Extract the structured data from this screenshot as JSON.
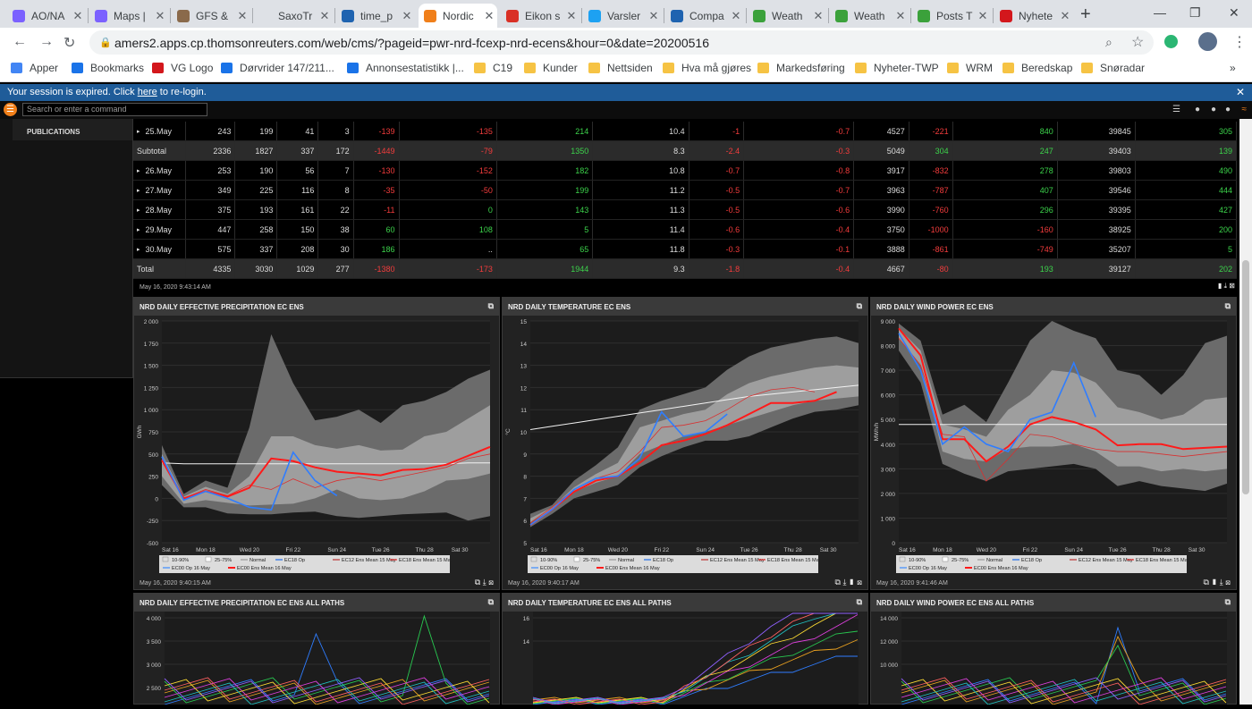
{
  "tabs": [
    {
      "label": "AO/NA",
      "color": "#7b61ff",
      "active": false
    },
    {
      "label": "Maps |",
      "color": "#7b61ff",
      "active": false
    },
    {
      "label": "GFS &",
      "color": "#8a6a4b",
      "active": false
    },
    {
      "label": "SaxoTr",
      "color": "#dee1e6",
      "active": false
    },
    {
      "label": "time_p",
      "color": "#1f63b0",
      "active": false
    },
    {
      "label": "Nordic",
      "color": "#f07f1a",
      "active": true
    },
    {
      "label": "Eikon s",
      "color": "#d93025",
      "active": false
    },
    {
      "label": "Varsler",
      "color": "#1da1f2",
      "active": false
    },
    {
      "label": "Compa",
      "color": "#1f63b0",
      "active": false
    },
    {
      "label": "Weath",
      "color": "#3ba13b",
      "active": false
    },
    {
      "label": "Weath",
      "color": "#3ba13b",
      "active": false
    },
    {
      "label": "Posts T",
      "color": "#3ba13b",
      "active": false
    },
    {
      "label": "Nyhete",
      "color": "#d3171c",
      "active": false
    }
  ],
  "address": {
    "url": "amers2.apps.cp.thomsonreuters.com/web/cms/?pageid=pwr-nrd-fcexp-nrd-ecens&hour=0&date=20200516"
  },
  "bookmarks": [
    {
      "label": "Apper",
      "color": "#4285f4"
    },
    {
      "label": "Bookmarks",
      "color": "#1a73e8"
    },
    {
      "label": "VG Logo",
      "color": "#d3171c"
    },
    {
      "label": "Dørvrider 147/211...",
      "color": "#1a73e8"
    },
    {
      "label": "Annonsestatistikk |...",
      "color": "#1a73e8"
    },
    {
      "label": "C19",
      "color": "#f6c344"
    },
    {
      "label": "Kunder",
      "color": "#f6c344"
    },
    {
      "label": "Nettsiden",
      "color": "#f6c344"
    },
    {
      "label": "Hva må gjøres",
      "color": "#f6c344"
    },
    {
      "label": "Markedsføring",
      "color": "#f6c344"
    },
    {
      "label": "Nyheter-TWP",
      "color": "#f6c344"
    },
    {
      "label": "WRM",
      "color": "#f6c344"
    },
    {
      "label": "Beredskap",
      "color": "#f6c344"
    },
    {
      "label": "Snøradar",
      "color": "#f6c344"
    }
  ],
  "session": {
    "before": "Your session is expired. Click ",
    "link": "here",
    "after": " to re-login."
  },
  "command": {
    "placeholder": "Search or enter a command"
  },
  "sidebar": {
    "publications": "PUBLICATIONS"
  },
  "table": {
    "rows": [
      {
        "label": "25.May",
        "exp": true,
        "cells": [
          "243",
          "199",
          "41",
          "3",
          "-139",
          "-135",
          "214",
          "10.4",
          "-1",
          "-0.7",
          "4527",
          "-221",
          "840",
          "39845",
          "305"
        ]
      },
      {
        "label": "Subtotal",
        "exp": false,
        "sub": true,
        "cells": [
          "2336",
          "1827",
          "337",
          "172",
          "-1449",
          "-79",
          "1350",
          "8.3",
          "-2.4",
          "-0.3",
          "5049",
          "304",
          "247",
          "39403",
          "139"
        ]
      },
      {
        "label": "26.May",
        "exp": true,
        "cells": [
          "253",
          "190",
          "56",
          "7",
          "-130",
          "-152",
          "182",
          "10.8",
          "-0.7",
          "-0.8",
          "3917",
          "-832",
          "278",
          "39803",
          "490"
        ]
      },
      {
        "label": "27.May",
        "exp": true,
        "cells": [
          "349",
          "225",
          "116",
          "8",
          "-35",
          "-50",
          "199",
          "11.2",
          "-0.5",
          "-0.7",
          "3963",
          "-787",
          "407",
          "39546",
          "444"
        ]
      },
      {
        "label": "28.May",
        "exp": true,
        "cells": [
          "375",
          "193",
          "161",
          "22",
          "-11",
          "0",
          "143",
          "11.3",
          "-0.5",
          "-0.6",
          "3990",
          "-760",
          "296",
          "39395",
          "427"
        ]
      },
      {
        "label": "29.May",
        "exp": true,
        "cells": [
          "447",
          "258",
          "150",
          "38",
          "60",
          "108",
          "5",
          "11.4",
          "-0.6",
          "-0.4",
          "3750",
          "-1000",
          "-160",
          "38925",
          "200"
        ]
      },
      {
        "label": "30.May",
        "exp": true,
        "cells": [
          "575",
          "337",
          "208",
          "30",
          "186",
          "..",
          "65",
          "11.8",
          "-0.3",
          "-0.1",
          "3888",
          "-861",
          "-749",
          "35207",
          "5"
        ]
      },
      {
        "label": "Total",
        "exp": false,
        "sub": true,
        "cells": [
          "4335",
          "3030",
          "1029",
          "277",
          "-1380",
          "-173",
          "1944",
          "9.3",
          "-1.8",
          "-0.4",
          "4667",
          "-80",
          "193",
          "39127",
          "202"
        ]
      }
    ],
    "timestamp": "May 16, 2020 9:43:14 AM"
  },
  "legend": [
    {
      "label": "10-90%",
      "color": "#dddddd",
      "kind": "box"
    },
    {
      "label": "25-75%",
      "color": "#ffffff",
      "kind": "box"
    },
    {
      "label": "Normal",
      "color": "#ffffff",
      "kind": "line"
    },
    {
      "label": "EC18 Op",
      "color": "#1e6fe8",
      "kind": "line"
    },
    {
      "label": "EC12 Ens Mean 15 May",
      "color": "#b33",
      "kind": "line"
    },
    {
      "label": "EC18 Ens Mean 15 May",
      "color": "#e83030",
      "kind": "line"
    },
    {
      "label": "EC00 Op 16 May",
      "color": "#3c8cff",
      "kind": "line"
    },
    {
      "label": "EC00 Ens Mean 16 May",
      "color": "#ff1a1a",
      "kind": "line"
    }
  ],
  "chart_data": [
    {
      "type": "area",
      "title": "NRD DAILY EFFECTIVE PRECIPITATION EC ENS",
      "ylabel": "GWh",
      "ylim": [
        -500,
        2000
      ],
      "yticks": [
        "2 000",
        "1 750",
        "1 500",
        "1 250",
        "1 000",
        "750",
        "500",
        "250",
        "0",
        "-250",
        "-500"
      ],
      "xticks": [
        "Sat 16",
        "Mon 18",
        "Wed 20",
        "Fri 22",
        "Sun 24",
        "Tue 26",
        "Thu 28",
        "Sat 30"
      ],
      "p10": [
        150,
        -100,
        -100,
        -170,
        -180,
        -180,
        -160,
        -150,
        -200,
        -220,
        -200,
        -180,
        -170,
        -160,
        -250,
        -200
      ],
      "p90": [
        600,
        50,
        200,
        120,
        800,
        1850,
        1300,
        880,
        920,
        1000,
        850,
        1050,
        1100,
        1200,
        1350,
        1450
      ],
      "p25": [
        250,
        -60,
        -20,
        -50,
        -80,
        -70,
        -60,
        0,
        100,
        0,
        -20,
        0,
        80,
        200,
        220,
        280
      ],
      "p75": [
        500,
        20,
        130,
        50,
        250,
        700,
        700,
        600,
        560,
        600,
        540,
        550,
        700,
        750,
        900,
        1050
      ],
      "normal": [
        400,
        390,
        390,
        390,
        390,
        390,
        390,
        390,
        390,
        390,
        390,
        390,
        390,
        390,
        400,
        400
      ],
      "ec00_op": [
        470,
        -20,
        80,
        0,
        -100,
        -130,
        520,
        200,
        30
      ],
      "ec00_mean": [
        430,
        0,
        80,
        20,
        120,
        450,
        420,
        350,
        300,
        280,
        260,
        320,
        330,
        380,
        480,
        580
      ],
      "ec12_mean": [
        450,
        0,
        100,
        30,
        150,
        100,
        220,
        120,
        200,
        240,
        200,
        250,
        300,
        350,
        450,
        500
      ]
    },
    {
      "type": "area",
      "title": "NRD DAILY TEMPERATURE EC ENS",
      "ylabel": "°C",
      "ylim": [
        5,
        15
      ],
      "yticks": [
        "15",
        "14",
        "13",
        "12",
        "11",
        "10",
        "9",
        "8",
        "7",
        "6",
        "5"
      ],
      "xticks": [
        "Sat 16",
        "Mon 18",
        "Wed 20",
        "Fri 22",
        "Sun 24",
        "Tue 26",
        "Thu 28",
        "Sat 30"
      ],
      "p10": [
        5.7,
        6.3,
        7.0,
        7.3,
        7.6,
        8.4,
        8.9,
        9.3,
        9.6,
        9.6,
        9.8,
        10.2,
        10.6,
        10.9,
        11.0,
        11.2
      ],
      "p90": [
        6.3,
        6.7,
        7.8,
        8.5,
        9.3,
        11.0,
        11.4,
        11.7,
        12.0,
        12.8,
        13.4,
        13.8,
        14.0,
        14.2,
        14.3,
        14.0
      ],
      "p25": [
        5.9,
        6.5,
        7.3,
        7.7,
        8.0,
        9.0,
        9.4,
        9.8,
        10.0,
        10.3,
        10.6,
        10.9,
        11.2,
        11.4,
        11.5,
        11.6
      ],
      "p75": [
        6.1,
        6.6,
        7.5,
        8.1,
        8.6,
        10.2,
        10.5,
        10.8,
        11.0,
        11.7,
        12.2,
        12.5,
        12.7,
        12.9,
        13.0,
        12.9
      ],
      "normal": [
        10.1,
        10.25,
        10.4,
        10.55,
        10.7,
        10.85,
        11.0,
        11.15,
        11.3,
        11.45,
        11.6,
        11.7,
        11.8,
        11.9,
        12.0,
        12.1
      ],
      "ec00_op": [
        5.8,
        6.5,
        7.4,
        7.9,
        8.0,
        8.8,
        10.9,
        9.8,
        10.0,
        10.8
      ],
      "ec00_mean": [
        5.8,
        6.5,
        7.3,
        7.8,
        8.0,
        8.6,
        9.4,
        9.6,
        9.9,
        10.3,
        10.8,
        11.3,
        11.3,
        11.4,
        11.8
      ],
      "ec12_mean": [
        5.9,
        6.6,
        7.4,
        7.9,
        8.2,
        9.1,
        10.2,
        10.3,
        10.5,
        11.0,
        11.6,
        11.9,
        12.0,
        11.8
      ]
    },
    {
      "type": "area",
      "title": "NRD DAILY WIND POWER EC ENS",
      "ylabel": "MWh/h",
      "ylim": [
        0,
        9000
      ],
      "yticks": [
        "9 000",
        "8 000",
        "7 000",
        "6 000",
        "5 000",
        "4 000",
        "3 000",
        "2 000",
        "1 000",
        "0"
      ],
      "xticks": [
        "Sat 16",
        "Mon 18",
        "Wed 20",
        "Fri 22",
        "Sun 24",
        "Tue 26",
        "Thu 28",
        "Sat 30"
      ],
      "p10": [
        7800,
        6500,
        3200,
        2800,
        2500,
        2900,
        3000,
        3100,
        3200,
        3000,
        2300,
        2500,
        2300,
        2200,
        2100,
        2400
      ],
      "p90": [
        8900,
        8200,
        5200,
        5600,
        4900,
        6500,
        8200,
        9000,
        8600,
        8300,
        7000,
        6800,
        6000,
        6800,
        8100,
        8400
      ],
      "p25": [
        8300,
        7200,
        3700,
        3400,
        3300,
        3800,
        3900,
        3900,
        4000,
        3700,
        3100,
        3100,
        2900,
        3000,
        2900,
        3000
      ],
      "p75": [
        8700,
        7800,
        4800,
        4600,
        4300,
        5400,
        6000,
        7000,
        6900,
        6500,
        5500,
        5300,
        5000,
        5200,
        5800,
        5900
      ],
      "normal": [
        4800,
        4800,
        4800,
        4800,
        4800,
        4800,
        4800,
        4800,
        4800,
        4800,
        4800,
        4800,
        4800,
        4800,
        4800,
        4800
      ],
      "ec00_op": [
        8500,
        7000,
        4000,
        4700,
        4000,
        3700,
        5000,
        5300,
        7300,
        5100
      ],
      "ec00_mean": [
        8700,
        7600,
        4200,
        4200,
        3300,
        3900,
        4800,
        5100,
        4900,
        4600,
        3950,
        4000,
        4000,
        3800,
        3850,
        3900
      ],
      "ec12_mean": [
        8300,
        7200,
        4400,
        4300,
        2500,
        3400,
        4400,
        4300,
        4000,
        3800,
        3700,
        3700,
        3600,
        3500,
        3600,
        3700
      ]
    }
  ],
  "panels_lower": [
    {
      "title": "NRD DAILY EFFECTIVE PRECIPITATION EC ENS ALL PATHS",
      "yticks": [
        "4 000",
        "3 500",
        "3 000",
        "2 500"
      ]
    },
    {
      "title": "NRD DAILY TEMPERATURE EC ENS ALL PATHS",
      "yticks": [
        "16",
        "14"
      ]
    },
    {
      "title": "NRD DAILY WIND POWER EC ENS ALL PATHS",
      "yticks": [
        "14 000",
        "12 000",
        "10 000"
      ]
    }
  ],
  "timestamps": {
    "p1": "May 16, 2020 9:40:15 AM",
    "p2": "May 16, 2020 9:40:17 AM",
    "p3": "May 16, 2020 9:41:46 AM"
  }
}
